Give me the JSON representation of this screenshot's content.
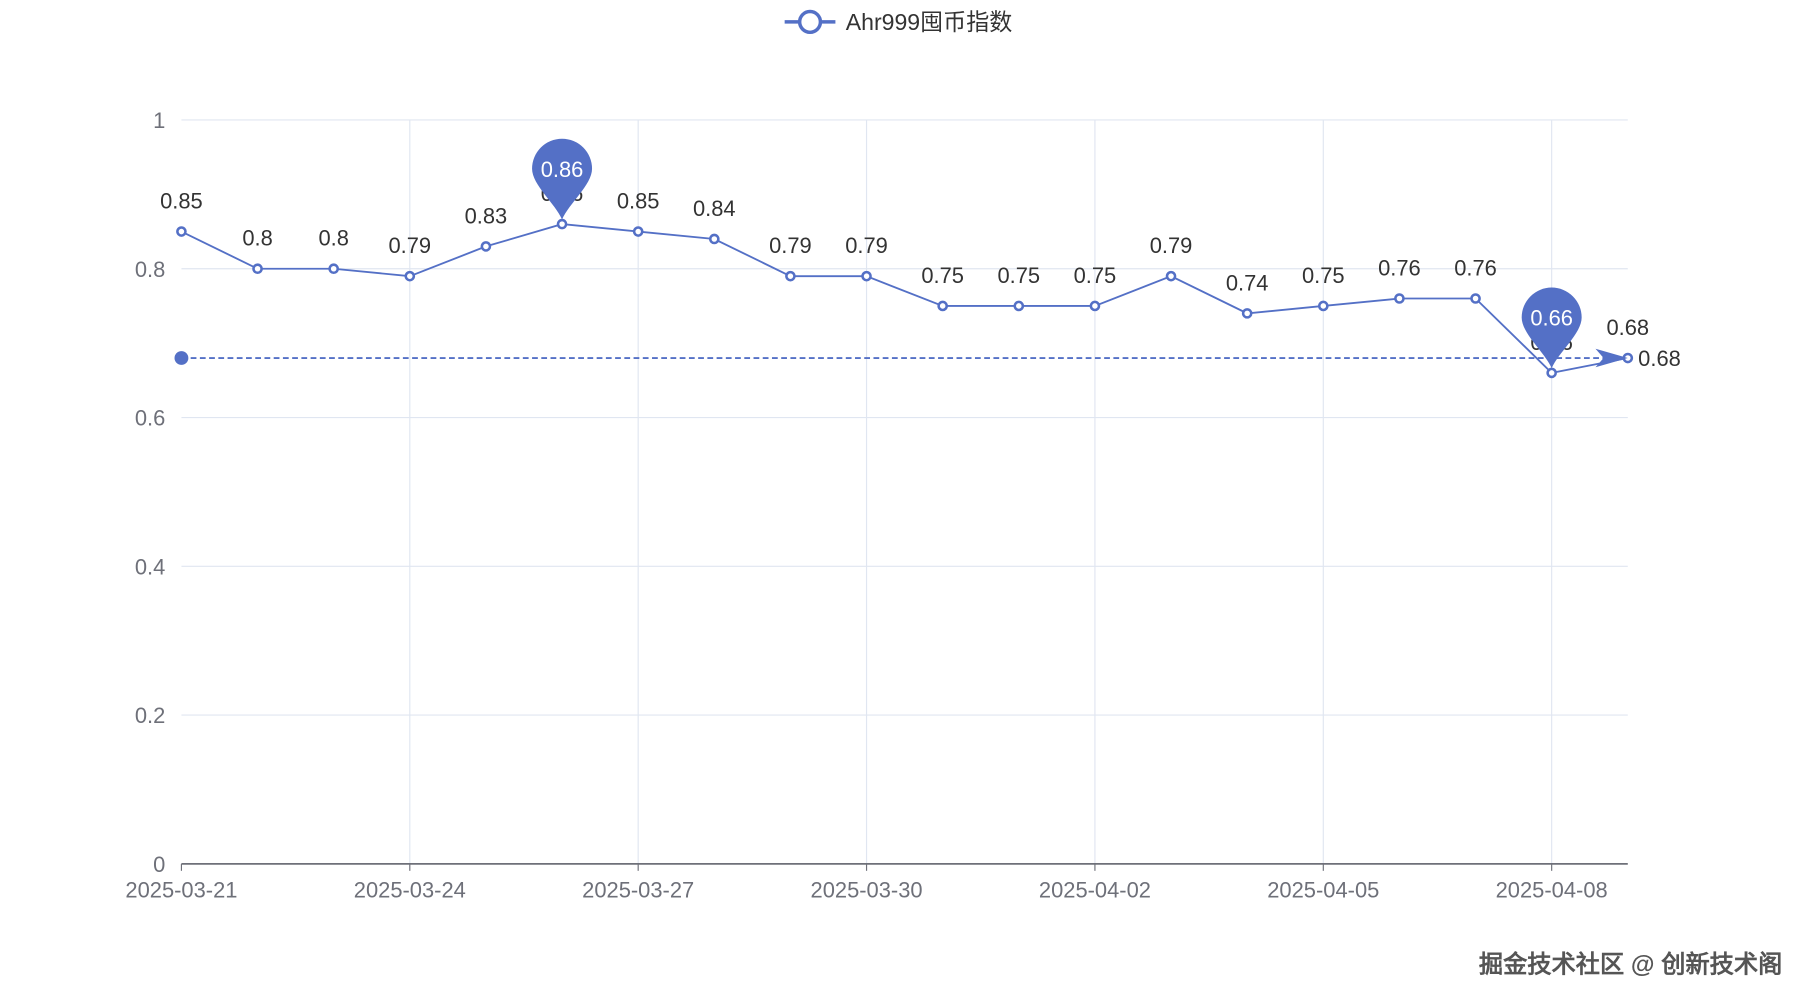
{
  "colors": {
    "series": "#5470c6",
    "grid": "#e0e6f1",
    "axis": "#6e7079",
    "text": "#333333"
  },
  "watermark": "掘金技术社区 @ 创新技术阁",
  "chart_data": {
    "type": "line",
    "title": "",
    "legend": {
      "entries": [
        "Ahr999囤币指数"
      ],
      "position": "top-center"
    },
    "x": [
      "2025-03-21",
      "2025-03-22",
      "2025-03-23",
      "2025-03-24",
      "2025-03-25",
      "2025-03-26",
      "2025-03-27",
      "2025-03-28",
      "2025-03-29",
      "2025-03-30",
      "2025-03-31",
      "2025-04-01",
      "2025-04-02",
      "2025-04-03",
      "2025-04-04",
      "2025-04-05",
      "2025-04-06",
      "2025-04-07",
      "2025-04-08",
      "2025-04-09"
    ],
    "x_tick_labels": [
      "2025-03-21",
      "2025-03-24",
      "2025-03-27",
      "2025-03-30",
      "2025-04-02",
      "2025-04-05",
      "2025-04-08"
    ],
    "series": [
      {
        "name": "Ahr999囤币指数",
        "values": [
          0.85,
          0.8,
          0.8,
          0.79,
          0.83,
          0.86,
          0.85,
          0.84,
          0.79,
          0.79,
          0.75,
          0.75,
          0.75,
          0.79,
          0.74,
          0.75,
          0.76,
          0.76,
          0.66,
          0.68
        ]
      }
    ],
    "ylim": [
      0,
      1
    ],
    "y_ticks": [
      "0",
      "0.2",
      "0.4",
      "0.6",
      "0.8",
      "1"
    ],
    "grid": true,
    "mark_points": [
      {
        "type": "max",
        "label": "0.86"
      },
      {
        "type": "min",
        "label": "0.66"
      }
    ],
    "mark_line": {
      "value": 0.68,
      "label": "0.68"
    }
  }
}
